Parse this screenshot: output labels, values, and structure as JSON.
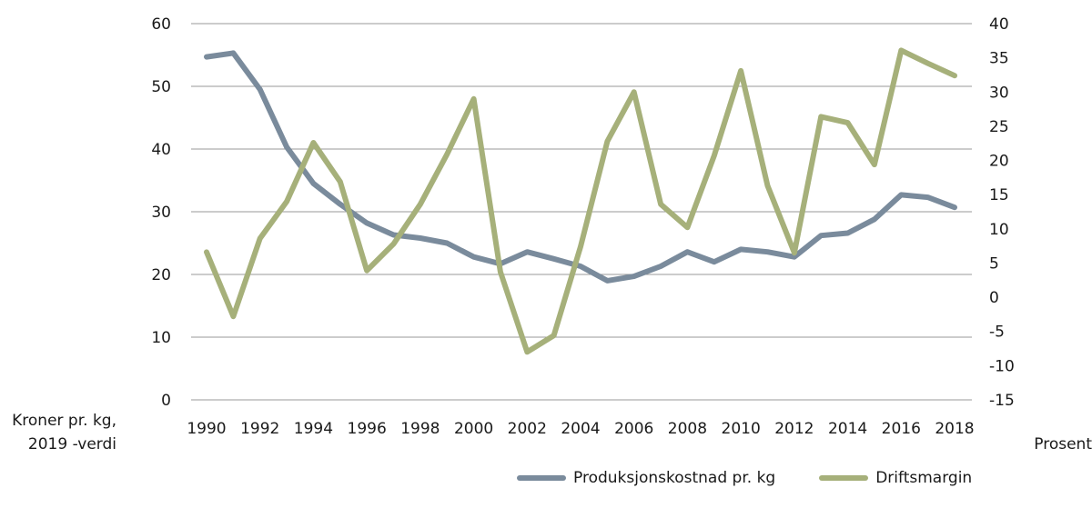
{
  "chart_data": {
    "type": "line",
    "title": "",
    "x": [
      1990,
      1991,
      1992,
      1993,
      1994,
      1995,
      1996,
      1997,
      1998,
      1999,
      2000,
      2001,
      2002,
      2003,
      2004,
      2005,
      2006,
      2007,
      2008,
      2009,
      2010,
      2011,
      2012,
      2013,
      2014,
      2015,
      2016,
      2017,
      2018
    ],
    "x_tick_labels": [
      "1990",
      "1992",
      "1994",
      "1996",
      "1998",
      "2000",
      "2002",
      "2004",
      "2006",
      "2008",
      "2010",
      "2012",
      "2014",
      "2016",
      "2018"
    ],
    "ylabel_left": "Kroner pr. kg, 2019 -verdi",
    "ylabel_left_lines": [
      "Kroner pr. kg,",
      "2019 -verdi"
    ],
    "ylabel_right": "Prosent",
    "ylim_left": [
      0,
      60
    ],
    "ylim_right": [
      -15,
      40
    ],
    "y_ticks_left": [
      "60",
      "50",
      "40",
      "30",
      "20",
      "10",
      "0"
    ],
    "y_ticks_right": [
      "40",
      "35",
      "30",
      "25",
      "20",
      "15",
      "10",
      "5",
      "0",
      "-5",
      "-10",
      "-15"
    ],
    "grid": true,
    "legend_position": "bottom-right",
    "series": [
      {
        "name": "Produksjonskostnad pr. kg",
        "axis": "left",
        "color": "#7a8b9c",
        "values": [
          54.7,
          55.3,
          49.5,
          40.3,
          34.5,
          31.2,
          28.2,
          26.3,
          25.8,
          25.0,
          22.8,
          21.7,
          23.6,
          22.5,
          21.3,
          19.0,
          19.7,
          21.3,
          23.6,
          22.0,
          24.0,
          23.6,
          22.8,
          26.2,
          26.6,
          28.8,
          32.7,
          32.3,
          30.7
        ]
      },
      {
        "name": "Driftsmargin",
        "axis": "right",
        "color": "#a6b07a",
        "values": [
          6.6,
          -2.8,
          8.6,
          14.0,
          22.6,
          16.9,
          3.9,
          7.8,
          13.6,
          20.9,
          29.0,
          3.7,
          -8.0,
          -5.6,
          7.4,
          22.8,
          30.0,
          13.6,
          10.2,
          20.7,
          33.1,
          16.3,
          6.5,
          26.4,
          25.5,
          19.4,
          36.1,
          34.2,
          32.4
        ]
      }
    ]
  },
  "legend": {
    "items": [
      {
        "label": "Produksjonskostnad pr. kg",
        "color": "#7a8b9c"
      },
      {
        "label": "Driftsmargin",
        "color": "#a6b07a"
      }
    ]
  }
}
